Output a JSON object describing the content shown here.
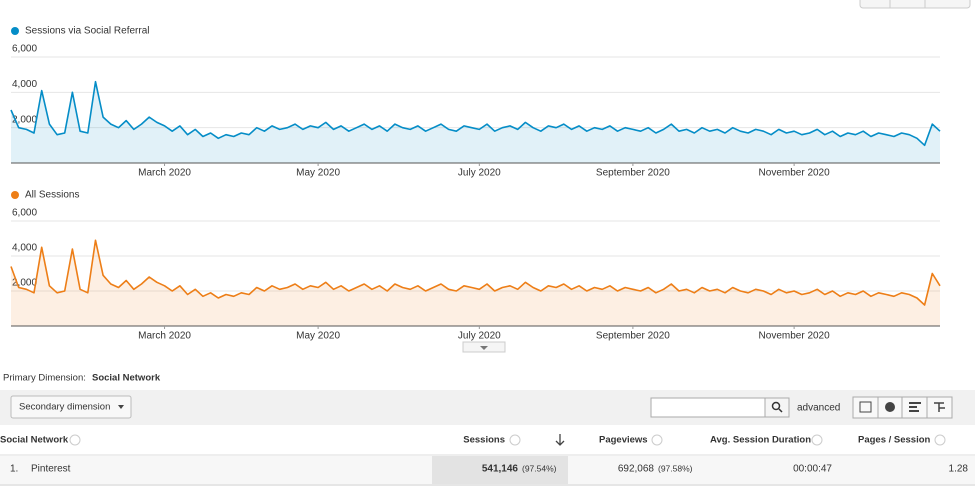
{
  "chart_data": [
    {
      "type": "line",
      "series": [
        {
          "name": "Sessions via Social Referral",
          "color": "#058dc7",
          "values": [
            3000,
            2000,
            1900,
            1700,
            4100,
            2200,
            1600,
            1700,
            4000,
            1800,
            1700,
            4600,
            2600,
            2200,
            2000,
            2400,
            1900,
            2200,
            2600,
            2300,
            2100,
            1800,
            2100,
            1600,
            1900,
            1500,
            1700,
            1400,
            1600,
            1500,
            1700,
            1600,
            2000,
            1800,
            2100,
            1900,
            2000,
            2200,
            1900,
            2100,
            2000,
            2300,
            1900,
            2100,
            1800,
            2000,
            2200,
            1900,
            2100,
            1800,
            2200,
            2000,
            1900,
            2100,
            1800,
            2000,
            2200,
            1900,
            1800,
            2100,
            2000,
            1900,
            2200,
            1800,
            2000,
            2100,
            1900,
            2300,
            2000,
            1800,
            2100,
            2000,
            2200,
            1900,
            2100,
            1800,
            2000,
            1900,
            2100,
            1800,
            2000,
            1900,
            1800,
            2000,
            1700,
            1900,
            2200,
            1800,
            1900,
            1700,
            2000,
            1800,
            1900,
            1700,
            2000,
            1800,
            1700,
            1900,
            1800,
            1600,
            1900,
            1700,
            1800,
            1600,
            1700,
            1900,
            1600,
            1800,
            1500,
            1700,
            1600,
            1800,
            1500,
            1700,
            1600,
            1500,
            1700,
            1600,
            1400,
            1000,
            2200,
            1800
          ]
        }
      ],
      "xlim": [
        0,
        121
      ],
      "xticks": [
        {
          "value": 20,
          "label": "March 2020"
        },
        {
          "value": 40,
          "label": "May 2020"
        },
        {
          "value": 61,
          "label": "July 2020"
        },
        {
          "value": 81,
          "label": "September 2020"
        },
        {
          "value": 102,
          "label": "November 2020"
        }
      ],
      "ylim": [
        0,
        6000
      ],
      "yticks": [
        {
          "value": 2000,
          "label": "2,000"
        },
        {
          "value": 4000,
          "label": "4,000"
        },
        {
          "value": 6000,
          "label": "6,000"
        }
      ],
      "grid": true
    },
    {
      "type": "line",
      "series": [
        {
          "name": "All Sessions",
          "color": "#ed7e17",
          "values": [
            3400,
            2200,
            2100,
            1900,
            4500,
            2300,
            1900,
            2000,
            4400,
            2100,
            1900,
            4900,
            2900,
            2400,
            2200,
            2600,
            2100,
            2400,
            2800,
            2500,
            2300,
            2000,
            2300,
            1800,
            2100,
            1700,
            1900,
            1600,
            1800,
            1700,
            1900,
            1800,
            2200,
            2000,
            2300,
            2100,
            2200,
            2400,
            2100,
            2300,
            2200,
            2500,
            2100,
            2300,
            2000,
            2200,
            2400,
            2100,
            2300,
            2000,
            2400,
            2200,
            2100,
            2300,
            2000,
            2200,
            2400,
            2100,
            2000,
            2300,
            2200,
            2100,
            2400,
            2000,
            2200,
            2300,
            2100,
            2500,
            2200,
            2000,
            2300,
            2200,
            2400,
            2100,
            2300,
            2000,
            2200,
            2100,
            2300,
            2000,
            2200,
            2100,
            2000,
            2200,
            1900,
            2100,
            2400,
            2000,
            2100,
            1900,
            2200,
            2000,
            2100,
            1900,
            2200,
            2000,
            1900,
            2100,
            2000,
            1800,
            2100,
            1900,
            2000,
            1800,
            1900,
            2100,
            1800,
            2000,
            1700,
            1900,
            1800,
            2000,
            1700,
            1900,
            1800,
            1700,
            1900,
            1800,
            1600,
            1200,
            3000,
            2300
          ]
        }
      ],
      "xlim": [
        0,
        121
      ],
      "xticks": [
        {
          "value": 20,
          "label": "March 2020"
        },
        {
          "value": 40,
          "label": "May 2020"
        },
        {
          "value": 61,
          "label": "July 2020"
        },
        {
          "value": 81,
          "label": "September 2020"
        },
        {
          "value": 102,
          "label": "November 2020"
        }
      ],
      "ylim": [
        0,
        6000
      ],
      "yticks": [
        {
          "value": 2000,
          "label": "2,000"
        },
        {
          "value": 4000,
          "label": "4,000"
        },
        {
          "value": 6000,
          "label": "6,000"
        }
      ],
      "grid": true
    }
  ],
  "primary_dimension": {
    "label": "Primary Dimension:",
    "value": "Social Network"
  },
  "controls": {
    "secondary": "Secondary dimension",
    "advanced": "advanced"
  },
  "table": {
    "columns": [
      "Social Network",
      "Sessions",
      "Pageviews",
      "Avg. Session Duration",
      "Pages / Session"
    ],
    "rows": [
      {
        "rank": "1.",
        "name": "Pinterest",
        "sessions": "541,146",
        "sessions_pct": "(97.54%)",
        "pageviews": "692,068",
        "pageviews_pct": "(97.58%)",
        "duration": "00:00:47",
        "pages": "1.28"
      }
    ]
  }
}
